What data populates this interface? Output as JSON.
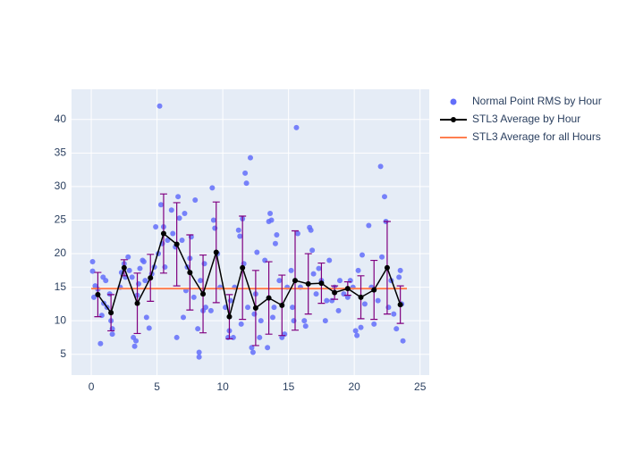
{
  "chart_data": {
    "type": "scatter",
    "xlim": [
      -1.5,
      25.7
    ],
    "ylim": [
      1.9,
      44.5
    ],
    "xticks": [
      0,
      5,
      10,
      15,
      20,
      25
    ],
    "yticks": [
      5,
      10,
      15,
      20,
      25,
      30,
      35,
      40
    ],
    "grid": true,
    "legend": "right",
    "series": [
      {
        "name": "Normal Point RMS by Hour",
        "type": "scatter",
        "color": "#636efa",
        "x": [
          0.1,
          0.2,
          0.3,
          0.1,
          0.5,
          0.7,
          0.8,
          0.9,
          0.95,
          1.1,
          1.2,
          1.5,
          1.6,
          1.6,
          1.4,
          2.3,
          2.5,
          2.6,
          2.8,
          2.9,
          2.2,
          3.2,
          3.3,
          3.4,
          3.1,
          3.5,
          3.7,
          3.9,
          3.6,
          4.0,
          4.1,
          4.4,
          4.6,
          4.2,
          4.8,
          4.9,
          5.2,
          5.3,
          5.4,
          5.5,
          5.1,
          5.6,
          5.8,
          6.1,
          6.2,
          6.4,
          6.5,
          6.6,
          6.7,
          6.9,
          7.0,
          7.1,
          7.2,
          7.3,
          7.5,
          7.6,
          7.9,
          7.8,
          8.1,
          8.2,
          8.2,
          8.3,
          8.6,
          8.7,
          8.5,
          9.2,
          9.3,
          9.4,
          9.6,
          9.8,
          9.1,
          10.2,
          10.4,
          10.5,
          10.6,
          10.8,
          10.9,
          11.2,
          11.3,
          11.5,
          11.6,
          11.7,
          11.8,
          11.4,
          11.9,
          12.1,
          12.2,
          12.3,
          12.4,
          12.5,
          12.6,
          12.8,
          12.9,
          13.2,
          13.5,
          13.6,
          13.7,
          13.8,
          13.4,
          13.9,
          14.0,
          14.1,
          14.3,
          14.5,
          14.7,
          14.9,
          15.2,
          15.4,
          15.6,
          15.7,
          15.9,
          15.3,
          16.2,
          16.3,
          16.6,
          16.7,
          16.8,
          16.9,
          17.1,
          17.3,
          17.5,
          17.8,
          17.9,
          18.1,
          18.3,
          18.5,
          18.8,
          18.9,
          19.2,
          19.5,
          19.7,
          19.9,
          20.1,
          20.2,
          20.3,
          20.5,
          20.6,
          20.8,
          21.1,
          21.3,
          21.5,
          21.8,
          22.0,
          22.3,
          22.4,
          22.1,
          22.6,
          22.8,
          23.0,
          23.2,
          23.4,
          23.5,
          23.7,
          23.6
        ],
        "values": [
          18.8,
          13.5,
          15.2,
          17.4,
          14.7,
          6.6,
          10.8,
          16.5,
          12.6,
          16,
          12,
          10,
          8,
          8.8,
          14,
          17.2,
          18.5,
          16.5,
          19.5,
          17.5,
          15,
          7.5,
          6.2,
          7,
          16.5,
          13.8,
          17.8,
          19,
          15.5,
          18.8,
          16,
          8.9,
          17,
          10.5,
          18,
          24,
          42,
          27.3,
          21.5,
          24,
          20,
          18,
          22,
          26.5,
          23,
          21,
          7.5,
          28.5,
          25.3,
          22,
          10.5,
          26,
          14.5,
          18,
          19.3,
          22.5,
          28,
          13.5,
          8.8,
          5.3,
          4.6,
          16,
          18.5,
          12,
          11.5,
          29.8,
          25,
          23.8,
          20,
          15,
          11.5,
          12,
          7.5,
          8.5,
          13,
          7.5,
          15,
          23.5,
          22.6,
          25.2,
          18.5,
          32,
          30.5,
          9.5,
          12,
          34.3,
          6,
          5.3,
          11,
          14,
          20.2,
          7.5,
          10,
          19,
          24.8,
          26,
          25,
          10.5,
          6,
          12,
          21.5,
          22.8,
          16,
          7.5,
          8,
          15,
          17.5,
          10,
          38.8,
          23,
          15,
          12,
          10,
          9.2,
          23.9,
          23.5,
          20.5,
          17,
          14,
          17.8,
          16,
          10,
          13,
          19,
          13,
          15,
          11.5,
          16,
          14,
          13.5,
          16,
          15,
          8.5,
          7.8,
          17.5,
          9,
          19.8,
          12.5,
          24.2,
          15,
          9.5,
          13,
          33,
          28.5,
          24.8,
          19.5,
          12,
          16,
          11,
          8.8,
          16.5,
          17.5,
          7,
          12.5
        ]
      },
      {
        "name": "STL3 Average by Hour",
        "type": "line",
        "color": "#000000",
        "error_color": "#800080",
        "x": [
          0.5,
          1.5,
          2.5,
          3.5,
          4.5,
          5.5,
          6.5,
          7.5,
          8.5,
          9.5,
          10.5,
          11.5,
          12.5,
          13.5,
          14.5,
          15.5,
          16.5,
          17.5,
          18.5,
          19.5,
          20.5,
          21.5,
          22.5,
          23.5
        ],
        "values": [
          13.9,
          11.2,
          17.9,
          12.6,
          16.4,
          23.0,
          21.4,
          17.2,
          14.0,
          20.2,
          10.6,
          17.9,
          11.9,
          13.4,
          12.3,
          16.0,
          15.5,
          15.6,
          14.2,
          14.8,
          13.5,
          14.6,
          17.9,
          12.4
        ],
        "errors": [
          3.3,
          2.7,
          1.2,
          4.5,
          3.5,
          5.9,
          6.2,
          5.6,
          5.8,
          7.5,
          3.3,
          7.7,
          5.6,
          5.4,
          4.5,
          7.4,
          4.5,
          3.0,
          1.0,
          1.0,
          3.2,
          4.4,
          6.9,
          2.8
        ]
      },
      {
        "name": "STL3 Average for all Hours",
        "type": "hline",
        "color": "#ff7f50",
        "x": [
          0,
          24
        ],
        "values": [
          14.8,
          14.8
        ]
      }
    ]
  }
}
